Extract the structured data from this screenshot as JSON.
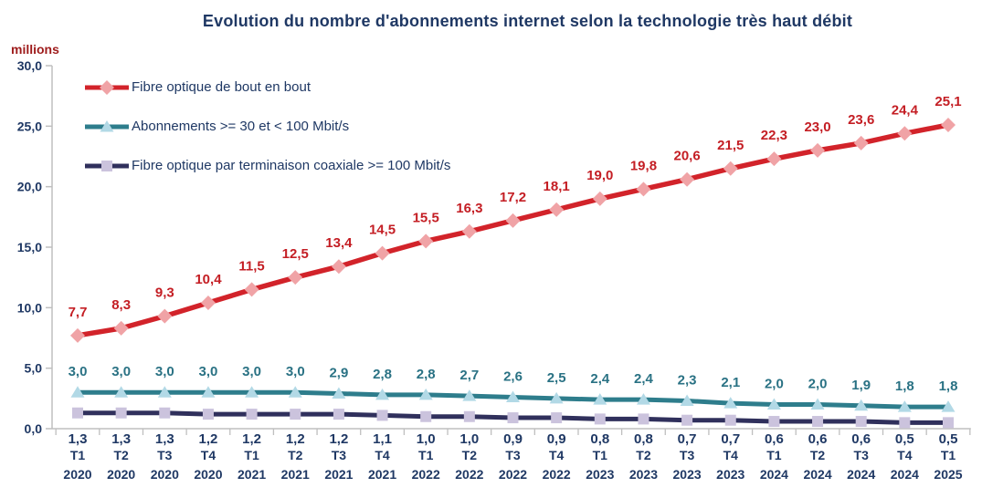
{
  "chart_data": {
    "type": "line",
    "title": "Evolution du nombre d'abonnements internet selon la technologie très haut débit",
    "y_axis": {
      "unit_label": "millions",
      "min": 0,
      "max": 30,
      "tick_step": 5,
      "tick_labels": [
        "0,0",
        "5,0",
        "10,0",
        "15,0",
        "20,0",
        "25,0",
        "30,0"
      ]
    },
    "x_categories": [
      {
        "quarter": "T1",
        "year": "2020"
      },
      {
        "quarter": "T2",
        "year": "2020"
      },
      {
        "quarter": "T3",
        "year": "2020"
      },
      {
        "quarter": "T4",
        "year": "2020"
      },
      {
        "quarter": "T1",
        "year": "2021"
      },
      {
        "quarter": "T2",
        "year": "2021"
      },
      {
        "quarter": "T3",
        "year": "2021"
      },
      {
        "quarter": "T4",
        "year": "2021"
      },
      {
        "quarter": "T1",
        "year": "2022"
      },
      {
        "quarter": "T2",
        "year": "2022"
      },
      {
        "quarter": "T3",
        "year": "2022"
      },
      {
        "quarter": "T4",
        "year": "2022"
      },
      {
        "quarter": "T1",
        "year": "2023"
      },
      {
        "quarter": "T2",
        "year": "2023"
      },
      {
        "quarter": "T3",
        "year": "2023"
      },
      {
        "quarter": "T4",
        "year": "2023"
      },
      {
        "quarter": "T1",
        "year": "2024"
      },
      {
        "quarter": "T2",
        "year": "2024"
      },
      {
        "quarter": "T3",
        "year": "2024"
      },
      {
        "quarter": "T4",
        "year": "2024"
      },
      {
        "quarter": "T1",
        "year": "2025"
      }
    ],
    "series": [
      {
        "name": "Fibre optique de bout en bout",
        "marker": "diamond",
        "line_color": "#D2232A",
        "marker_color": "#F0A3A6",
        "label_color": "#C41E24",
        "values": [
          7.7,
          8.3,
          9.3,
          10.4,
          11.5,
          12.5,
          13.4,
          14.5,
          15.5,
          16.3,
          17.2,
          18.1,
          19.0,
          19.8,
          20.6,
          21.5,
          22.3,
          23.0,
          23.6,
          24.4,
          25.1
        ],
        "labels": [
          "7,7",
          "8,3",
          "9,3",
          "10,4",
          "11,5",
          "12,5",
          "13,4",
          "14,5",
          "15,5",
          "16,3",
          "17,2",
          "18,1",
          "19,0",
          "19,8",
          "20,6",
          "21,5",
          "22,3",
          "23,0",
          "23,6",
          "24,4",
          "25,1"
        ]
      },
      {
        "name": "Abonnements >= 30 et < 100 Mbit/s",
        "marker": "triangle",
        "line_color": "#2E7D8C",
        "marker_color": "#B2D9E6",
        "label_color": "#2A7284",
        "values": [
          3.0,
          3.0,
          3.0,
          3.0,
          3.0,
          3.0,
          2.9,
          2.8,
          2.8,
          2.7,
          2.6,
          2.5,
          2.4,
          2.4,
          2.3,
          2.1,
          2.0,
          2.0,
          1.9,
          1.8,
          1.8
        ],
        "labels": [
          "3,0",
          "3,0",
          "3,0",
          "3,0",
          "3,0",
          "3,0",
          "2,9",
          "2,8",
          "2,8",
          "2,7",
          "2,6",
          "2,5",
          "2,4",
          "2,4",
          "2,3",
          "2,1",
          "2,0",
          "2,0",
          "1,9",
          "1,8",
          "1,8"
        ]
      },
      {
        "name": "Fibre optique par terminaison coaxiale >= 100 Mbit/s",
        "marker": "square",
        "line_color": "#30305C",
        "marker_color": "#CBC3DD",
        "label_color": "#1F3864",
        "values": [
          1.3,
          1.3,
          1.3,
          1.2,
          1.2,
          1.2,
          1.2,
          1.1,
          1.0,
          1.0,
          0.9,
          0.9,
          0.8,
          0.8,
          0.7,
          0.7,
          0.6,
          0.6,
          0.6,
          0.5,
          0.5
        ],
        "labels": [
          "1,3",
          "1,3",
          "1,3",
          "1,2",
          "1,2",
          "1,2",
          "1,2",
          "1,1",
          "1,0",
          "1,0",
          "0,9",
          "0,9",
          "0,8",
          "0,8",
          "0,7",
          "0,7",
          "0,6",
          "0,6",
          "0,6",
          "0,5",
          "0,5"
        ]
      }
    ],
    "legend_position": "top-left",
    "grid": false,
    "axis_color": "#BFBFBF",
    "text_color": "#1F3864",
    "unit_label_color": "#9E1B1B"
  }
}
